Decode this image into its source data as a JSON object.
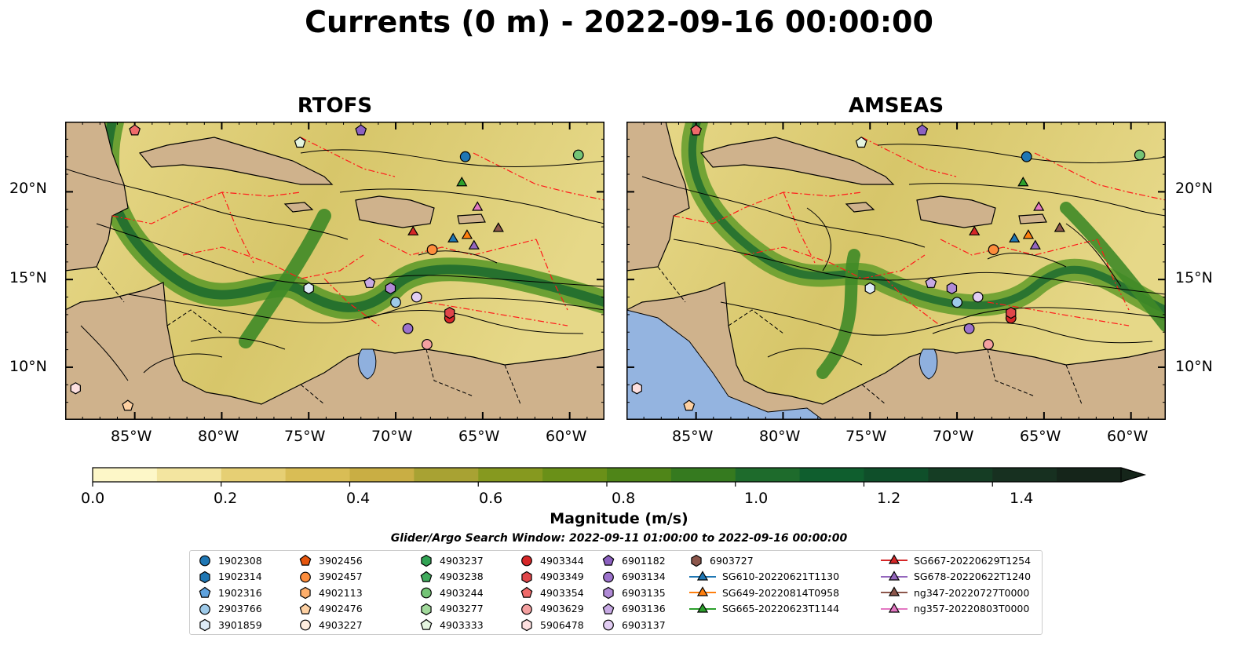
{
  "title": "Currents (0 m) - 2022-09-16 00:00:00",
  "panels": [
    {
      "id": "rtofs",
      "title": "RTOFS"
    },
    {
      "id": "amseas",
      "title": "AMSEAS"
    }
  ],
  "axes": {
    "lon_labels": [
      "85°W",
      "80°W",
      "75°W",
      "70°W",
      "65°W",
      "60°W"
    ],
    "lat_labels": [
      "20°N",
      "15°N",
      "10°N"
    ],
    "lon_range": [
      -89,
      -58
    ],
    "lat_range": [
      7,
      24
    ]
  },
  "colorbar": {
    "label": "Magnitude (m/s)",
    "ticks": [
      "0.0",
      "0.2",
      "0.4",
      "0.6",
      "0.8",
      "1.0",
      "1.2",
      "1.4"
    ],
    "range": [
      0,
      1.6
    ],
    "extend": "max",
    "colors": [
      "#fdf7c8",
      "#f3e5a0",
      "#e6cf74",
      "#d9bd55",
      "#c9ae44",
      "#a8a233",
      "#86991f",
      "#6a9018",
      "#4f8518",
      "#357a1f",
      "#1e6b2c",
      "#0f5e2e",
      "#0f4f2a",
      "#153d24",
      "#173020",
      "#15251a"
    ]
  },
  "search_window": "Glider/Argo Search Window: 2022-09-11 01:00:00 to 2022-09-16 00:00:00",
  "legend": [
    {
      "label": "1902308",
      "shape": "circle",
      "color": "#1f77b4"
    },
    {
      "label": "1902314",
      "shape": "hexagon",
      "color": "#1f77b4"
    },
    {
      "label": "1902316",
      "shape": "pentagon",
      "color": "#5fa2dd"
    },
    {
      "label": "2903766",
      "shape": "circle",
      "color": "#9ecae9"
    },
    {
      "label": "3901859",
      "shape": "hexagon",
      "color": "#deebf7"
    },
    {
      "label": "3902456",
      "shape": "pentagon",
      "color": "#e6550d"
    },
    {
      "label": "3902457",
      "shape": "circle",
      "color": "#fd8d3c"
    },
    {
      "label": "4902113",
      "shape": "hexagon",
      "color": "#fdae6b"
    },
    {
      "label": "4902476",
      "shape": "pentagon",
      "color": "#fdd0a2"
    },
    {
      "label": "4903227",
      "shape": "circle",
      "color": "#feedde"
    },
    {
      "label": "4903237",
      "shape": "hexagon",
      "color": "#31a354"
    },
    {
      "label": "4903238",
      "shape": "pentagon",
      "color": "#41ab5d"
    },
    {
      "label": "4903244",
      "shape": "circle",
      "color": "#74c476"
    },
    {
      "label": "4903277",
      "shape": "hexagon",
      "color": "#a1d99b"
    },
    {
      "label": "4903333",
      "shape": "pentagon",
      "color": "#e5f5e0"
    },
    {
      "label": "4903344",
      "shape": "circle",
      "color": "#d62728"
    },
    {
      "label": "4903349",
      "shape": "hexagon",
      "color": "#e0464a"
    },
    {
      "label": "4903354",
      "shape": "pentagon",
      "color": "#ef6a6a"
    },
    {
      "label": "4903629",
      "shape": "circle",
      "color": "#f4a0a0"
    },
    {
      "label": "5906478",
      "shape": "hexagon",
      "color": "#fde0e0"
    },
    {
      "label": "6901182",
      "shape": "pentagon",
      "color": "#8c61c0"
    },
    {
      "label": "6903134",
      "shape": "circle",
      "color": "#9c72cc"
    },
    {
      "label": "6903135",
      "shape": "hexagon",
      "color": "#b08ad6"
    },
    {
      "label": "6903136",
      "shape": "pentagon",
      "color": "#c7a9e4"
    },
    {
      "label": "6903137",
      "shape": "circle",
      "color": "#e2cdf3"
    },
    {
      "label": "6903727",
      "shape": "hexagon",
      "color": "#8c564b"
    },
    {
      "label": "SG610-20220621T1130",
      "shape": "triangle-line",
      "color": "#1f77b4"
    },
    {
      "label": "SG649-20220814T0958",
      "shape": "triangle-line",
      "color": "#ff7f0e"
    },
    {
      "label": "SG665-20220623T1144",
      "shape": "triangle-line",
      "color": "#2ca02c"
    },
    {
      "label": "SG667-20220629T1254",
      "shape": "triangle-line",
      "color": "#d62728"
    },
    {
      "label": "SG678-20220622T1240",
      "shape": "triangle-line",
      "color": "#9467bd"
    },
    {
      "label": "ng347-20220727T0000",
      "shape": "triangle-line",
      "color": "#8c564b"
    },
    {
      "label": "ng357-20220803T0000",
      "shape": "triangle-line",
      "color": "#e377c2"
    }
  ],
  "markers": [
    {
      "lon": -85,
      "lat": 23.5,
      "shape": "pentagon",
      "color": "#ef6a6a"
    },
    {
      "lon": -72,
      "lat": 23.5,
      "shape": "pentagon",
      "color": "#8c61c0"
    },
    {
      "lon": -75.5,
      "lat": 22.8,
      "shape": "pentagon",
      "color": "#e5f5e0"
    },
    {
      "lon": -66,
      "lat": 22.0,
      "shape": "circle",
      "color": "#1f77b4"
    },
    {
      "lon": -59.5,
      "lat": 22.1,
      "shape": "circle",
      "color": "#74c476"
    },
    {
      "lon": -66.2,
      "lat": 20.5,
      "shape": "triangle",
      "color": "#2ca02c"
    },
    {
      "lon": -65.3,
      "lat": 19.1,
      "shape": "triangle",
      "color": "#e377c2"
    },
    {
      "lon": -69.0,
      "lat": 17.7,
      "shape": "triangle",
      "color": "#d62728"
    },
    {
      "lon": -64.1,
      "lat": 17.9,
      "shape": "triangle",
      "color": "#8c564b"
    },
    {
      "lon": -66.7,
      "lat": 17.3,
      "shape": "triangle",
      "color": "#1f77b4"
    },
    {
      "lon": -65.9,
      "lat": 17.5,
      "shape": "triangle",
      "color": "#ff7f0e"
    },
    {
      "lon": -65.5,
      "lat": 16.9,
      "shape": "triangle",
      "color": "#9467bd"
    },
    {
      "lon": -67.9,
      "lat": 16.7,
      "shape": "circle",
      "color": "#fd8d3c"
    },
    {
      "lon": -75.0,
      "lat": 14.5,
      "shape": "hexagon",
      "color": "#deebf7"
    },
    {
      "lon": -71.5,
      "lat": 14.8,
      "shape": "pentagon",
      "color": "#c7a9e4"
    },
    {
      "lon": -70.3,
      "lat": 14.5,
      "shape": "hexagon",
      "color": "#b08ad6"
    },
    {
      "lon": -70.0,
      "lat": 13.7,
      "shape": "circle",
      "color": "#9ecae9"
    },
    {
      "lon": -68.8,
      "lat": 14.0,
      "shape": "circle",
      "color": "#e2cdf3"
    },
    {
      "lon": -69.3,
      "lat": 12.2,
      "shape": "circle",
      "color": "#9c72cc"
    },
    {
      "lon": -66.9,
      "lat": 12.8,
      "shape": "circle",
      "color": "#d62728"
    },
    {
      "lon": -66.9,
      "lat": 13.1,
      "shape": "hexagon",
      "color": "#e0464a"
    },
    {
      "lon": -68.2,
      "lat": 11.3,
      "shape": "circle",
      "color": "#f4a0a0"
    },
    {
      "lon": -88.4,
      "lat": 8.8,
      "shape": "hexagon",
      "color": "#fde0e0"
    },
    {
      "lon": -85.4,
      "lat": 7.8,
      "shape": "pentagon",
      "color": "#fdd0a2"
    }
  ]
}
